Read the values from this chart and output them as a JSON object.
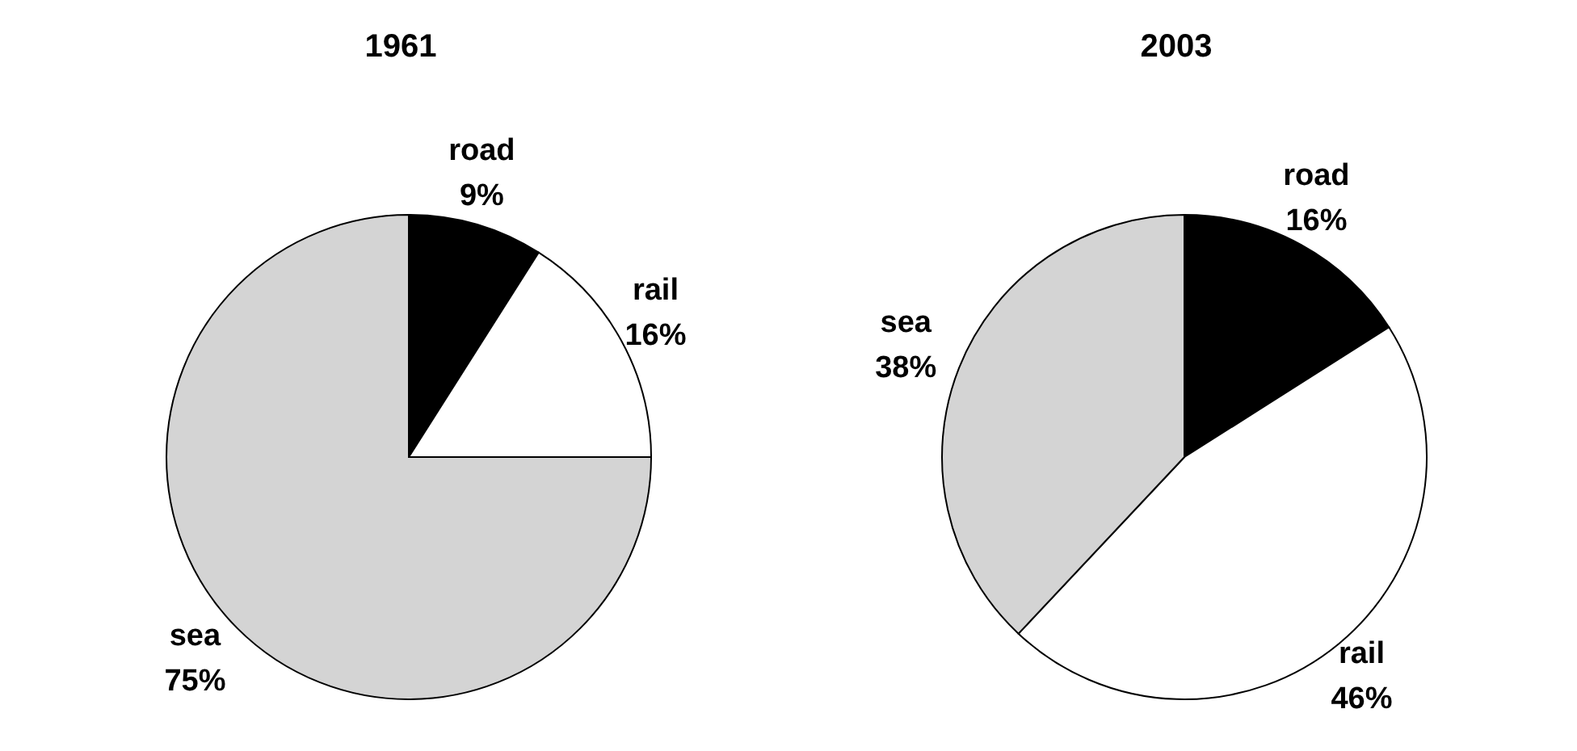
{
  "chart_data": [
    {
      "type": "pie",
      "title": "1961",
      "categories": [
        "road",
        "rail",
        "sea"
      ],
      "values": [
        9,
        16,
        75
      ],
      "value_labels": [
        "9%",
        "16%",
        "75%"
      ],
      "colors": [
        "#000000",
        "#ffffff",
        "#d4d4d4"
      ],
      "legend": false
    },
    {
      "type": "pie",
      "title": "2003",
      "categories": [
        "road",
        "rail",
        "sea"
      ],
      "values": [
        16,
        46,
        38
      ],
      "value_labels": [
        "16%",
        "46%",
        "38%"
      ],
      "colors": [
        "#000000",
        "#ffffff",
        "#d4d4d4"
      ],
      "legend": false
    }
  ]
}
